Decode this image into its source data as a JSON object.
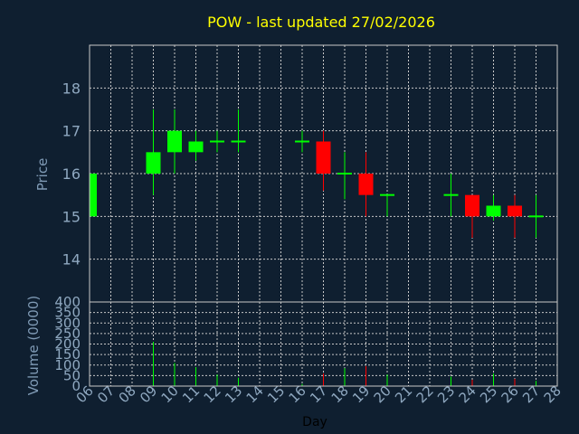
{
  "chart_data": {
    "type": "candlestick",
    "title": "POW - last updated 27/02/2026",
    "price_ylabel": "Price",
    "volume_ylabel": "Volume (0000)",
    "xlabel": "Day",
    "x_ticks": [
      "06",
      "07",
      "08",
      "09",
      "10",
      "11",
      "12",
      "13",
      "14",
      "15",
      "16",
      "17",
      "18",
      "19",
      "20",
      "21",
      "22",
      "23",
      "24",
      "25",
      "26",
      "27",
      "28"
    ],
    "price_ylim": [
      13,
      19
    ],
    "price_ticks": [
      14,
      15,
      16,
      17,
      18
    ],
    "volume_ylim": [
      0,
      400
    ],
    "volume_ticks": [
      0,
      50,
      100,
      150,
      200,
      250,
      300,
      350,
      400
    ],
    "grid": true,
    "colors": {
      "up": "#00ff00",
      "down": "#ff0000",
      "background": "#0f1f30",
      "title": "#ffff00"
    },
    "candles": [
      {
        "day": "06",
        "open": 15.0,
        "high": 16.0,
        "low": 15.0,
        "close": 16.0,
        "volume": 20
      },
      {
        "day": "09",
        "open": 16.0,
        "high": 17.5,
        "low": 15.5,
        "close": 16.5,
        "volume": 210
      },
      {
        "day": "10",
        "open": 16.5,
        "high": 17.5,
        "low": 16.0,
        "close": 17.0,
        "volume": 110
      },
      {
        "day": "11",
        "open": 16.5,
        "high": 17.0,
        "low": 16.3,
        "close": 16.75,
        "volume": 90
      },
      {
        "day": "12",
        "open": 16.75,
        "high": 17.0,
        "low": 16.5,
        "close": 16.75,
        "volume": 55
      },
      {
        "day": "13",
        "open": 16.75,
        "high": 17.5,
        "low": 16.5,
        "close": 16.75,
        "volume": 40
      },
      {
        "day": "16",
        "open": 16.75,
        "high": 17.0,
        "low": 16.5,
        "close": 16.75,
        "volume": 10
      },
      {
        "day": "17",
        "open": 16.75,
        "high": 17.0,
        "low": 15.6,
        "close": 16.0,
        "volume": 60
      },
      {
        "day": "18",
        "open": 16.0,
        "high": 16.5,
        "low": 15.4,
        "close": 16.0,
        "volume": 85
      },
      {
        "day": "19",
        "open": 16.0,
        "high": 16.5,
        "low": 15.0,
        "close": 15.5,
        "volume": 95
      },
      {
        "day": "20",
        "open": 15.5,
        "high": 15.5,
        "low": 15.0,
        "close": 15.5,
        "volume": 55
      },
      {
        "day": "23",
        "open": 15.5,
        "high": 16.0,
        "low": 15.0,
        "close": 15.5,
        "volume": 45
      },
      {
        "day": "24",
        "open": 15.5,
        "high": 15.5,
        "low": 14.5,
        "close": 15.0,
        "volume": 30
      },
      {
        "day": "25",
        "open": 15.0,
        "high": 15.5,
        "low": 14.9,
        "close": 15.25,
        "volume": 60
      },
      {
        "day": "26",
        "open": 15.25,
        "high": 15.5,
        "low": 14.5,
        "close": 15.0,
        "volume": 35
      },
      {
        "day": "27",
        "open": 15.0,
        "high": 15.5,
        "low": 14.5,
        "close": 15.0,
        "volume": 25
      }
    ]
  }
}
